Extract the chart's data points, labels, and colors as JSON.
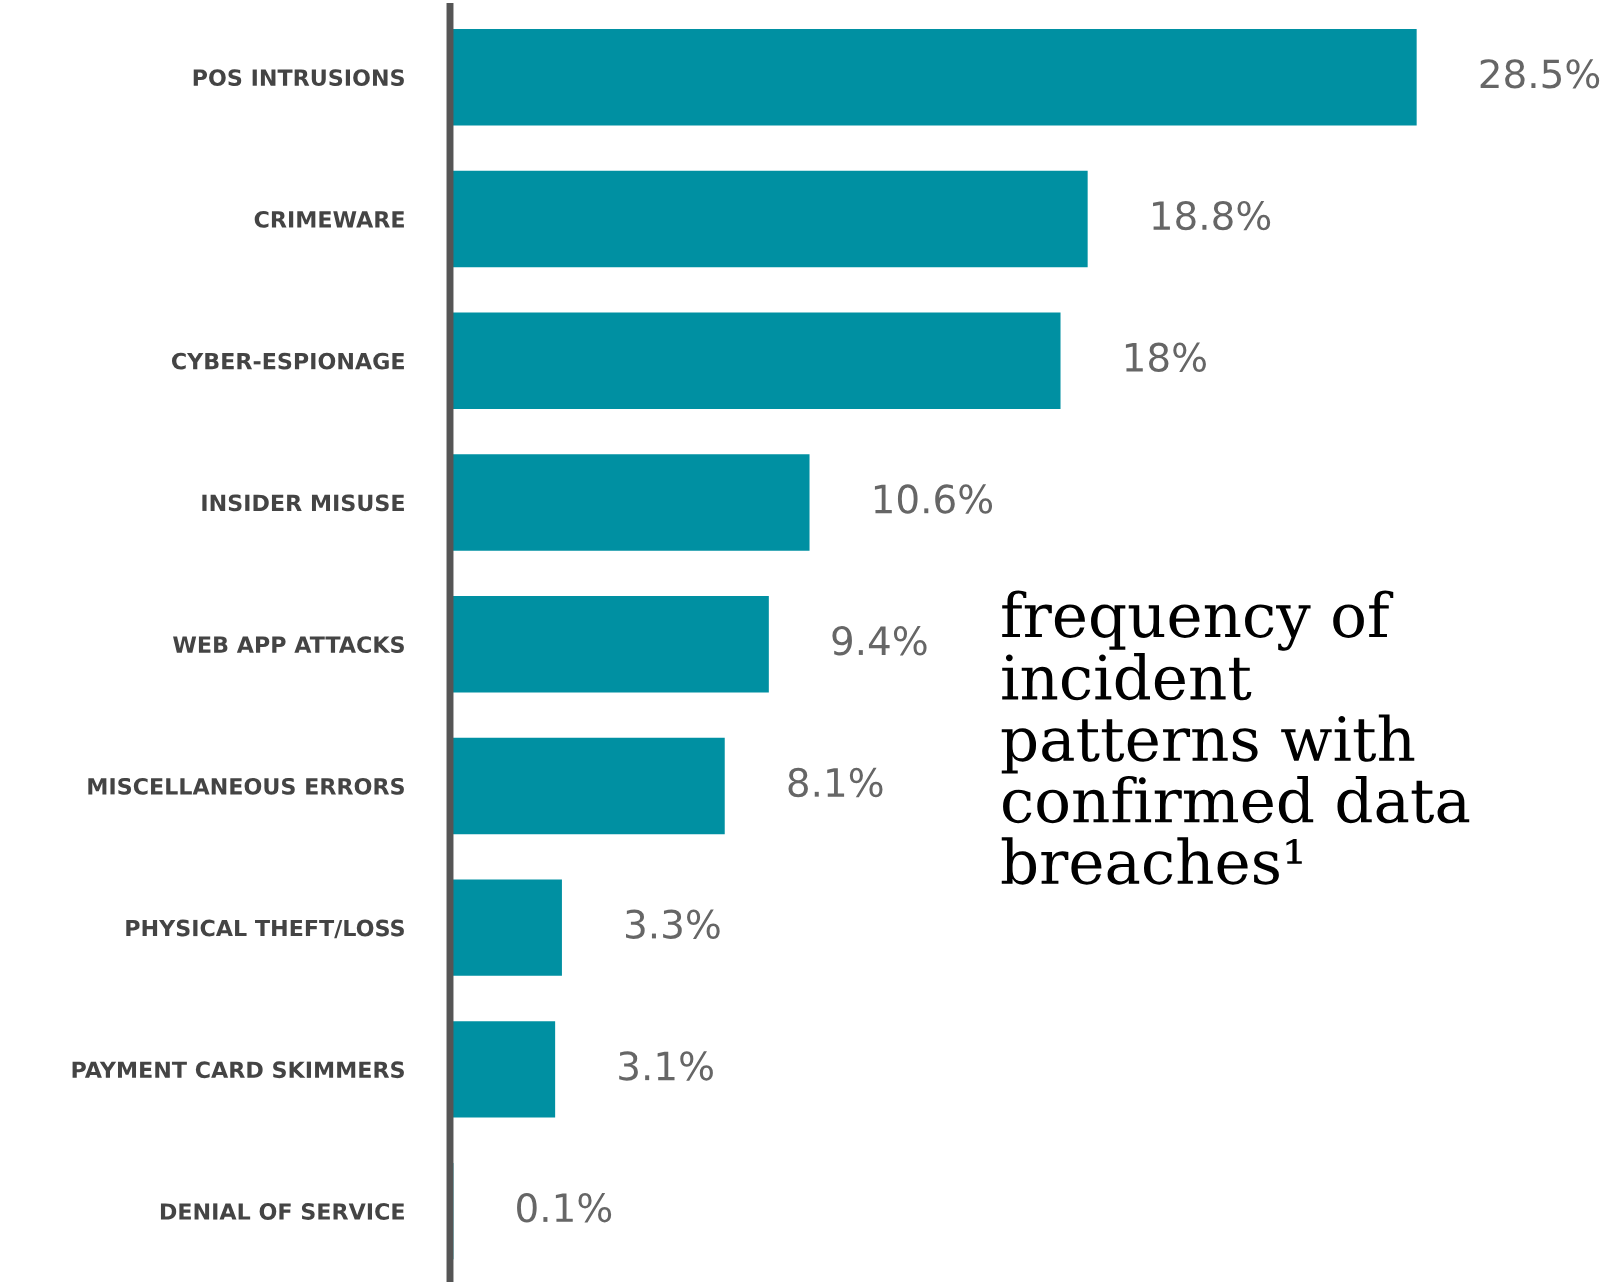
{
  "chart_data": {
    "type": "bar",
    "orientation": "horizontal",
    "categories": [
      "POS INTRUSIONS",
      "CRIMEWARE",
      "CYBER-ESPIONAGE",
      "INSIDER MISUSE",
      "WEB APP ATTACKS",
      "MISCELLANEOUS ERRORS",
      "PHYSICAL THEFT/LOSS",
      "PAYMENT CARD SKIMMERS",
      "DENIAL OF SERVICE"
    ],
    "values": [
      28.5,
      18.8,
      18,
      10.6,
      9.4,
      8.1,
      3.3,
      3.1,
      0.1
    ],
    "value_labels": [
      "28.5%",
      "18.8%",
      "18%",
      "10.6%",
      "9.4%",
      "8.1%",
      "3.3%",
      "3.1%",
      "0.1%"
    ],
    "color": "#0090a2",
    "annotations": [
      "frequency of\nincident\npatterns with\nconfirmed data\nbreaches¹"
    ],
    "legend": false,
    "grid": false
  }
}
